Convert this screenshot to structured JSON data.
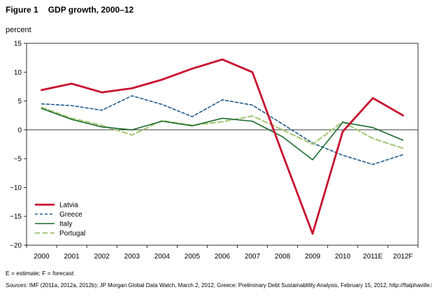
{
  "figure": {
    "label": "Figure 1",
    "title": "GDP growth, 2000–12"
  },
  "chart_data": {
    "type": "line",
    "title": "GDP growth, 2000–12",
    "ylabel": "percent",
    "xlabel": "",
    "categories": [
      "2000",
      "2001",
      "2002",
      "2003",
      "2004",
      "2005",
      "2006",
      "2007",
      "2008",
      "2009",
      "2010",
      "2011E",
      "2012F"
    ],
    "ylim": [
      -20,
      15
    ],
    "yticks": [
      15,
      10,
      5,
      0,
      -5,
      -10,
      -15,
      -20
    ],
    "grid": false,
    "legend_position": "bottom-left",
    "series": [
      {
        "name": "Latvia",
        "color": "#c8102e",
        "style": "solid",
        "values": [
          6.9,
          8.0,
          6.5,
          7.2,
          8.7,
          10.6,
          12.2,
          10.0,
          -4.2,
          -18.0,
          -0.3,
          5.5,
          2.5
        ]
      },
      {
        "name": "Greece",
        "color": "#1f5c8c",
        "style": "dashed",
        "values": [
          4.5,
          4.2,
          3.4,
          5.9,
          4.4,
          2.3,
          5.2,
          4.3,
          1.0,
          -2.3,
          -4.4,
          -6.0,
          -4.3
        ]
      },
      {
        "name": "Italy",
        "color": "#1b6b2e",
        "style": "solid",
        "values": [
          3.7,
          1.8,
          0.5,
          0.0,
          1.5,
          0.7,
          2.0,
          1.5,
          -1.2,
          -5.2,
          1.3,
          0.4,
          -1.8
        ]
      },
      {
        "name": "Portugal",
        "color": "#a9c97a",
        "style": "dashed",
        "values": [
          3.9,
          2.0,
          0.8,
          -0.9,
          1.6,
          0.8,
          1.4,
          2.4,
          0.0,
          -2.5,
          1.4,
          -1.5,
          -3.2
        ]
      }
    ]
  },
  "footnotes": {
    "estimate": "E = estimate;  F = forecast",
    "sources_lead": "Sources:",
    "sources_text": " IMF (2011a, 2012a, 2012b);  JP Morgan Global Data Watch, March 2, 2012; Greece: Preliminary Debt Sustainablility Analysis, February 15, 2012, http://ftalphaville.ft.com."
  }
}
